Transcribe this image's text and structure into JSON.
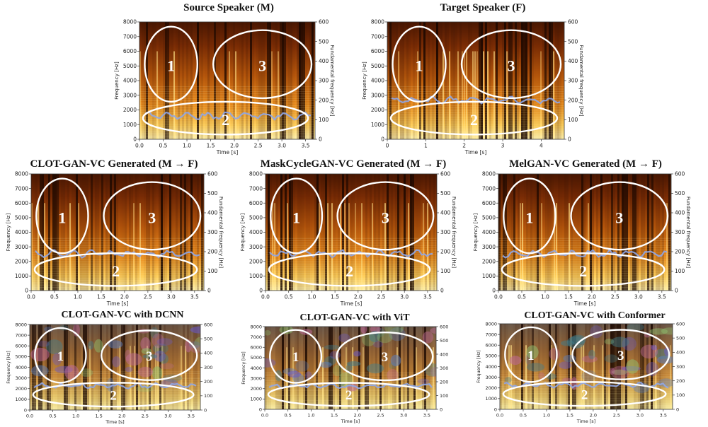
{
  "chart_data": [
    {
      "type": "heatmap",
      "title": "Source Speaker (M)",
      "xlabel": "Time [s]",
      "ylabel": "Frequency [Hz]",
      "y2label": "Fundamental frequency [Hz]",
      "xticks": [
        "0.0",
        "0.5",
        "1.0",
        "1.5",
        "2.0",
        "2.5",
        "3.0",
        "3.5"
      ],
      "xlim": [
        0,
        3.7
      ],
      "yticks": [
        "0",
        "1000",
        "2000",
        "3000",
        "4000",
        "5000",
        "6000",
        "7000",
        "8000"
      ],
      "ylim": [
        0,
        8000
      ],
      "y2ticks": [
        "0",
        "100",
        "200",
        "300",
        "400",
        "500",
        "600"
      ],
      "y2lim": [
        0,
        600
      ],
      "regions": [
        "1",
        "2",
        "3"
      ],
      "style": "clean",
      "f0_approx_hz": 120
    },
    {
      "type": "heatmap",
      "title": "Target Speaker (F)",
      "xlabel": "Time [s]",
      "ylabel": "Frequency [Hz]",
      "y2label": "Fundamental frequency [Hz]",
      "xticks": [
        "0",
        "1",
        "2",
        "3",
        "4"
      ],
      "xlim": [
        0,
        4.6
      ],
      "yticks": [
        "0",
        "1000",
        "2000",
        "3000",
        "4000",
        "5000",
        "6000",
        "7000",
        "8000"
      ],
      "ylim": [
        0,
        8000
      ],
      "y2ticks": [
        "0",
        "100",
        "200",
        "300",
        "400",
        "500",
        "600"
      ],
      "y2lim": [
        0,
        600
      ],
      "regions": [
        "1",
        "2",
        "3"
      ],
      "style": "clean",
      "f0_approx_hz": 200
    },
    {
      "type": "heatmap",
      "title": "CLOT-GAN-VC Generated (M → F)",
      "xlabel": "Time [s]",
      "ylabel": "Frequency [Hz]",
      "y2label": "Fundamental frequency [Hz]",
      "xticks": [
        "0.0",
        "0.5",
        "1.0",
        "1.5",
        "2.0",
        "2.5",
        "3.0",
        "3.5"
      ],
      "xlim": [
        0,
        3.7
      ],
      "yticks": [
        "0",
        "1000",
        "2000",
        "3000",
        "4000",
        "5000",
        "6000",
        "7000",
        "8000"
      ],
      "ylim": [
        0,
        8000
      ],
      "y2ticks": [
        "0",
        "100",
        "200",
        "300",
        "400",
        "500",
        "600"
      ],
      "y2lim": [
        0,
        600
      ],
      "regions": [
        "1",
        "2",
        "3"
      ],
      "style": "clean",
      "f0_approx_hz": 190
    },
    {
      "type": "heatmap",
      "title": "MaskCycleGAN-VC Generated (M → F)",
      "xlabel": "Time [s]",
      "ylabel": "Frequency [Hz]",
      "y2label": "Fundamental frequency [Hz]",
      "xticks": [
        "0.0",
        "0.5",
        "1.0",
        "1.5",
        "2.0",
        "2.5",
        "3.0",
        "3.5"
      ],
      "xlim": [
        0,
        3.7
      ],
      "yticks": [
        "0",
        "1000",
        "2000",
        "3000",
        "4000",
        "5000",
        "6000",
        "7000",
        "8000"
      ],
      "ylim": [
        0,
        8000
      ],
      "y2ticks": [
        "0",
        "100",
        "200",
        "300",
        "400",
        "500",
        "600"
      ],
      "y2lim": [
        0,
        600
      ],
      "regions": [
        "1",
        "2",
        "3"
      ],
      "style": "clean",
      "f0_approx_hz": 190
    },
    {
      "type": "heatmap",
      "title": "MelGAN-VC Generated (M → F)",
      "xlabel": "Time [s]",
      "ylabel": "Frequency [Hz]",
      "y2label": "Fundamental frequency [Hz]",
      "xticks": [
        "0.0",
        "0.5",
        "1.0",
        "1.5",
        "2.0",
        "2.5",
        "3.0",
        "3.5"
      ],
      "xlim": [
        0,
        3.7
      ],
      "yticks": [
        "0",
        "1000",
        "2000",
        "3000",
        "4000",
        "5000",
        "6000",
        "7000",
        "8000"
      ],
      "ylim": [
        0,
        8000
      ],
      "y2ticks": [
        "0",
        "100",
        "200",
        "300",
        "400",
        "500",
        "600"
      ],
      "y2lim": [
        0,
        600
      ],
      "regions": [
        "1",
        "2",
        "3"
      ],
      "style": "clean",
      "f0_approx_hz": 190
    },
    {
      "type": "heatmap",
      "title": "CLOT-GAN-VC with DCNN",
      "xlabel": "Time [s]",
      "ylabel": "Frequency [Hz]",
      "y2label": "",
      "xticks": [
        "0.0",
        "0.5",
        "1.0",
        "1.5",
        "2.0",
        "2.5",
        "3.0",
        "3.5"
      ],
      "xlim": [
        0,
        3.7
      ],
      "yticks": [
        "0",
        "1000",
        "2000",
        "3000",
        "4000",
        "5000",
        "6000",
        "7000",
        "8000"
      ],
      "ylim": [
        0,
        8000
      ],
      "y2ticks": [
        "0",
        "100",
        "200",
        "300",
        "400",
        "500",
        "600"
      ],
      "y2lim": [
        0,
        600
      ],
      "regions": [
        "1",
        "2",
        "3"
      ],
      "style": "artifact",
      "f0_approx_hz": 170
    },
    {
      "type": "heatmap",
      "title": "CLOT-GAN-VC with ViT",
      "xlabel": "Time [s]",
      "ylabel": "Frequency [Hz]",
      "y2label": "",
      "xticks": [
        "0.0",
        "0.5",
        "1.0",
        "1.5",
        "2.0",
        "2.5",
        "3.0",
        "3.5"
      ],
      "xlim": [
        0,
        3.7
      ],
      "yticks": [
        "0",
        "1000",
        "2000",
        "3000",
        "4000",
        "5000",
        "6000",
        "7000",
        "8000"
      ],
      "ylim": [
        0,
        8000
      ],
      "y2ticks": [
        "0",
        "100",
        "200",
        "300",
        "400",
        "500",
        "600"
      ],
      "y2lim": [
        0,
        600
      ],
      "regions": [
        "1",
        "2",
        "3"
      ],
      "style": "artifact",
      "f0_approx_hz": 170
    },
    {
      "type": "heatmap",
      "title": "CLOT-GAN-VC with Conformer",
      "xlabel": "Time [s]",
      "ylabel": "Frequency [Hz]",
      "y2label": "",
      "xticks": [
        "0.0",
        "0.5",
        "1.0",
        "1.5",
        "2.0",
        "2.5",
        "3.0",
        "3.5"
      ],
      "xlim": [
        0,
        3.7
      ],
      "yticks": [
        "0",
        "1000",
        "2000",
        "3000",
        "4000",
        "5000",
        "6000",
        "7000",
        "8000"
      ],
      "ylim": [
        0,
        8000
      ],
      "y2ticks": [
        "0",
        "100",
        "200",
        "300",
        "400",
        "500",
        "600"
      ],
      "y2lim": [
        0,
        600
      ],
      "regions": [
        "1",
        "2",
        "3"
      ],
      "style": "artifact",
      "f0_approx_hz": 170
    }
  ]
}
